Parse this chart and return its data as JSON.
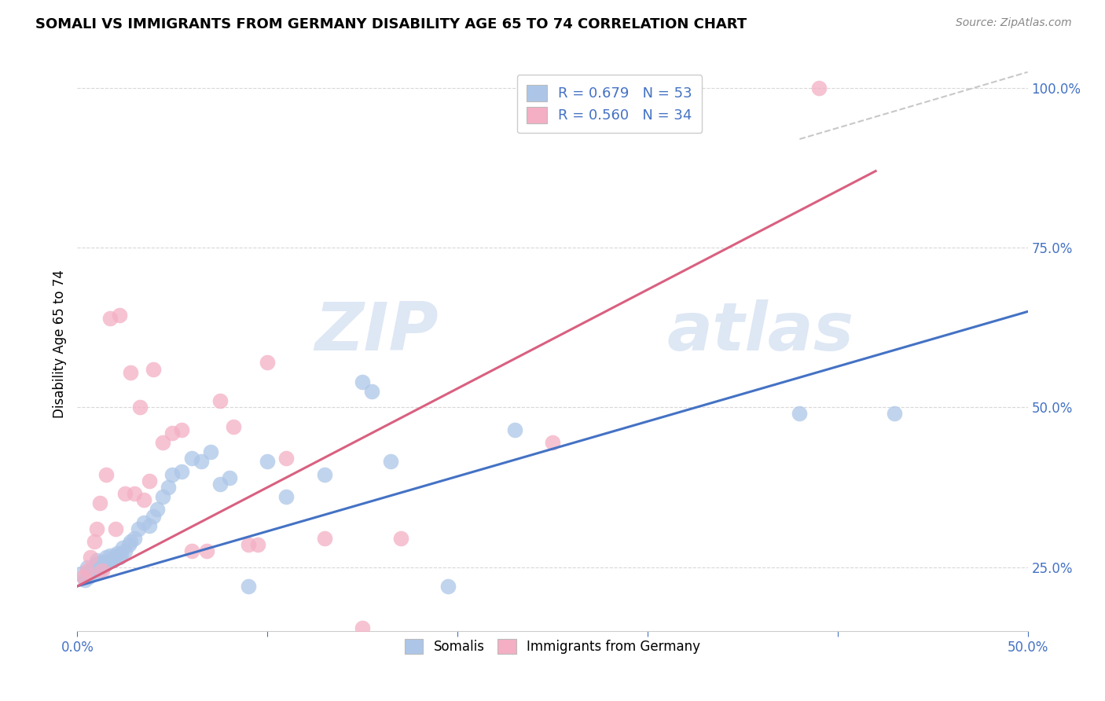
{
  "title": "SOMALI VS IMMIGRANTS FROM GERMANY DISABILITY AGE 65 TO 74 CORRELATION CHART",
  "source": "Source: ZipAtlas.com",
  "ylabel": "Disability Age 65 to 74",
  "xlim": [
    0.0,
    0.5
  ],
  "ylim": [
    0.15,
    1.05
  ],
  "xticks": [
    0.0,
    0.1,
    0.2,
    0.3,
    0.4,
    0.5
  ],
  "xtick_labels": [
    "0.0%",
    "",
    "",
    "",
    "",
    "50.0%"
  ],
  "yticks": [
    0.25,
    0.5,
    0.75,
    1.0
  ],
  "ytick_labels": [
    "25.0%",
    "50.0%",
    "75.0%",
    "100.0%"
  ],
  "somali_R": 0.679,
  "somali_N": 53,
  "germany_R": 0.56,
  "germany_N": 34,
  "somali_color": "#adc6e8",
  "germany_color": "#f4afc4",
  "somali_line_color": "#4472c4",
  "germany_line_color": "#d96080",
  "ref_line_color": "#c8c8c8",
  "background_color": "#ffffff",
  "grid_color": "#d8d8d8",
  "somali_x": [
    0.002,
    0.004,
    0.005,
    0.006,
    0.007,
    0.008,
    0.009,
    0.01,
    0.01,
    0.011,
    0.012,
    0.013,
    0.014,
    0.015,
    0.015,
    0.016,
    0.017,
    0.018,
    0.019,
    0.02,
    0.021,
    0.022,
    0.023,
    0.024,
    0.025,
    0.027,
    0.028,
    0.03,
    0.032,
    0.035,
    0.038,
    0.04,
    0.042,
    0.045,
    0.048,
    0.05,
    0.055,
    0.06,
    0.065,
    0.07,
    0.075,
    0.08,
    0.09,
    0.1,
    0.11,
    0.13,
    0.15,
    0.155,
    0.165,
    0.195,
    0.23,
    0.38,
    0.43
  ],
  "somali_y": [
    0.24,
    0.23,
    0.25,
    0.235,
    0.245,
    0.24,
    0.25,
    0.255,
    0.26,
    0.25,
    0.245,
    0.258,
    0.252,
    0.255,
    0.265,
    0.258,
    0.268,
    0.262,
    0.26,
    0.268,
    0.272,
    0.265,
    0.27,
    0.28,
    0.275,
    0.285,
    0.29,
    0.295,
    0.31,
    0.32,
    0.315,
    0.33,
    0.34,
    0.36,
    0.375,
    0.395,
    0.4,
    0.42,
    0.415,
    0.43,
    0.38,
    0.39,
    0.22,
    0.415,
    0.36,
    0.395,
    0.54,
    0.525,
    0.415,
    0.22,
    0.465,
    0.49,
    0.49
  ],
  "germany_x": [
    0.003,
    0.005,
    0.007,
    0.009,
    0.01,
    0.012,
    0.013,
    0.015,
    0.017,
    0.02,
    0.022,
    0.025,
    0.028,
    0.03,
    0.033,
    0.035,
    0.038,
    0.04,
    0.045,
    0.05,
    0.055,
    0.06,
    0.068,
    0.075,
    0.082,
    0.09,
    0.095,
    0.1,
    0.11,
    0.13,
    0.15,
    0.17,
    0.25,
    0.39
  ],
  "germany_y": [
    0.235,
    0.245,
    0.265,
    0.29,
    0.31,
    0.35,
    0.245,
    0.395,
    0.64,
    0.31,
    0.645,
    0.365,
    0.555,
    0.365,
    0.5,
    0.355,
    0.385,
    0.56,
    0.445,
    0.46,
    0.465,
    0.275,
    0.275,
    0.51,
    0.47,
    0.285,
    0.285,
    0.57,
    0.42,
    0.295,
    0.155,
    0.295,
    0.445,
    1.0
  ],
  "somali_line_x": [
    0.0,
    0.5
  ],
  "somali_line_y": [
    0.22,
    0.65
  ],
  "germany_line_x": [
    0.0,
    0.42
  ],
  "germany_line_y": [
    0.22,
    0.87
  ],
  "ref_line_x": [
    0.38,
    0.5
  ],
  "ref_line_y": [
    0.92,
    1.025
  ]
}
